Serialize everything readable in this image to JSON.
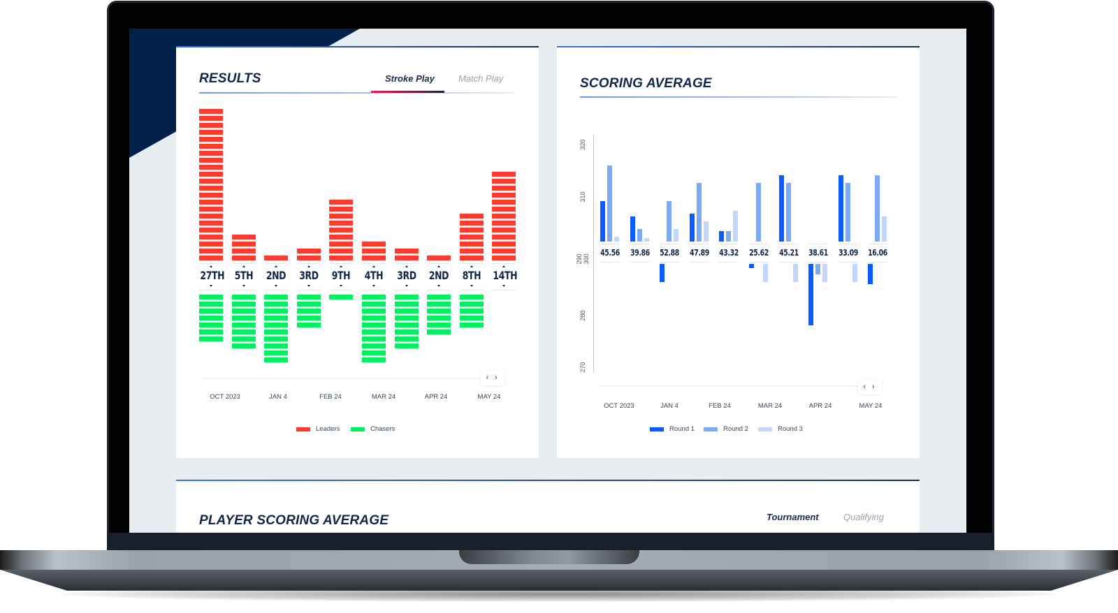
{
  "colors": {
    "navy": "#12264a",
    "leaders": "#ff3b30",
    "chasers": "#00f060",
    "round1": "#0a5cff",
    "round2": "#7ea9f5",
    "round3": "#c2d6fb",
    "tab_active_underline": "#e61e5a"
  },
  "results": {
    "title": "RESULTS",
    "tabs": [
      {
        "label": "Stroke Play",
        "active": true
      },
      {
        "label": "Match Play",
        "active": false
      }
    ],
    "scroll_label": "‹ ›",
    "x_labels": [
      "OCT 2023",
      "JAN 4",
      "FEB 24",
      "MAR 24",
      "APR 24",
      "MAY 24"
    ],
    "legend": [
      {
        "label": "Leaders",
        "color": "#ff3b30"
      },
      {
        "label": "Chasers",
        "color": "#00f060"
      }
    ]
  },
  "scoring": {
    "title": "SCORING AVERAGE",
    "scroll_label": "‹ ›",
    "y_ticks": [
      "320",
      "310",
      "290 300",
      "280",
      "270"
    ],
    "x_labels": [
      "OCT 2023",
      "JAN 4",
      "FEB 24",
      "MAR 24",
      "APR 24",
      "MAY 24"
    ],
    "legend": [
      {
        "label": "Round 1",
        "color": "#0a5cff"
      },
      {
        "label": "Round 2",
        "color": "#7ea9f5"
      },
      {
        "label": "Round 3",
        "color": "#c2d6fb"
      }
    ]
  },
  "player_scoring": {
    "title": "PLAYER SCORING AVERAGE",
    "tabs": [
      {
        "label": "Tournament",
        "active": true
      },
      {
        "label": "Qualifying",
        "active": false
      }
    ]
  },
  "chart_data": [
    {
      "type": "bar",
      "title": "RESULTS",
      "categories": [
        "27TH",
        "5TH",
        "2ND",
        "3RD",
        "9TH",
        "4TH",
        "3RD",
        "2ND",
        "8TH",
        "14TH"
      ],
      "series": [
        {
          "name": "Leaders",
          "values": [
            22,
            4,
            1,
            2,
            9,
            3,
            2,
            1,
            7,
            13
          ]
        },
        {
          "name": "Chasers",
          "values": [
            7,
            8,
            10,
            5,
            1,
            10,
            8,
            6,
            5,
            0
          ]
        }
      ],
      "x_tick_labels": [
        "OCT 2023",
        "JAN 4",
        "FEB 24",
        "MAR 24",
        "APR 24",
        "MAY 24"
      ],
      "legend_position": "bottom",
      "grid": false
    },
    {
      "type": "bar",
      "title": "SCORING AVERAGE",
      "categories": [
        "45.56",
        "39.86",
        "52.88",
        "47.89",
        "43.32",
        "25.62",
        "45.21",
        "38.61",
        "33.09",
        "16.06"
      ],
      "baseline": 300,
      "series": [
        {
          "name": "Round 1",
          "values": [
            308,
            305,
            294,
            305.5,
            302,
            299,
            313,
            280,
            313,
            293.5
          ]
        },
        {
          "name": "Round 2",
          "values": [
            315,
            302.5,
            308,
            311.5,
            302,
            311.5,
            311.5,
            296.5,
            311.5,
            313
          ]
        },
        {
          "name": "Round 3",
          "values": [
            301,
            300.7,
            302.5,
            304,
            306,
            294,
            294,
            294,
            294,
            305
          ]
        }
      ],
      "y_ticks": [
        270,
        280,
        290,
        300,
        310,
        320
      ],
      "ylim": [
        270,
        320
      ],
      "x_tick_labels": [
        "OCT 2023",
        "JAN 4",
        "FEB 24",
        "MAR 24",
        "APR 24",
        "MAY 24"
      ],
      "legend_position": "bottom",
      "grid": false
    }
  ]
}
